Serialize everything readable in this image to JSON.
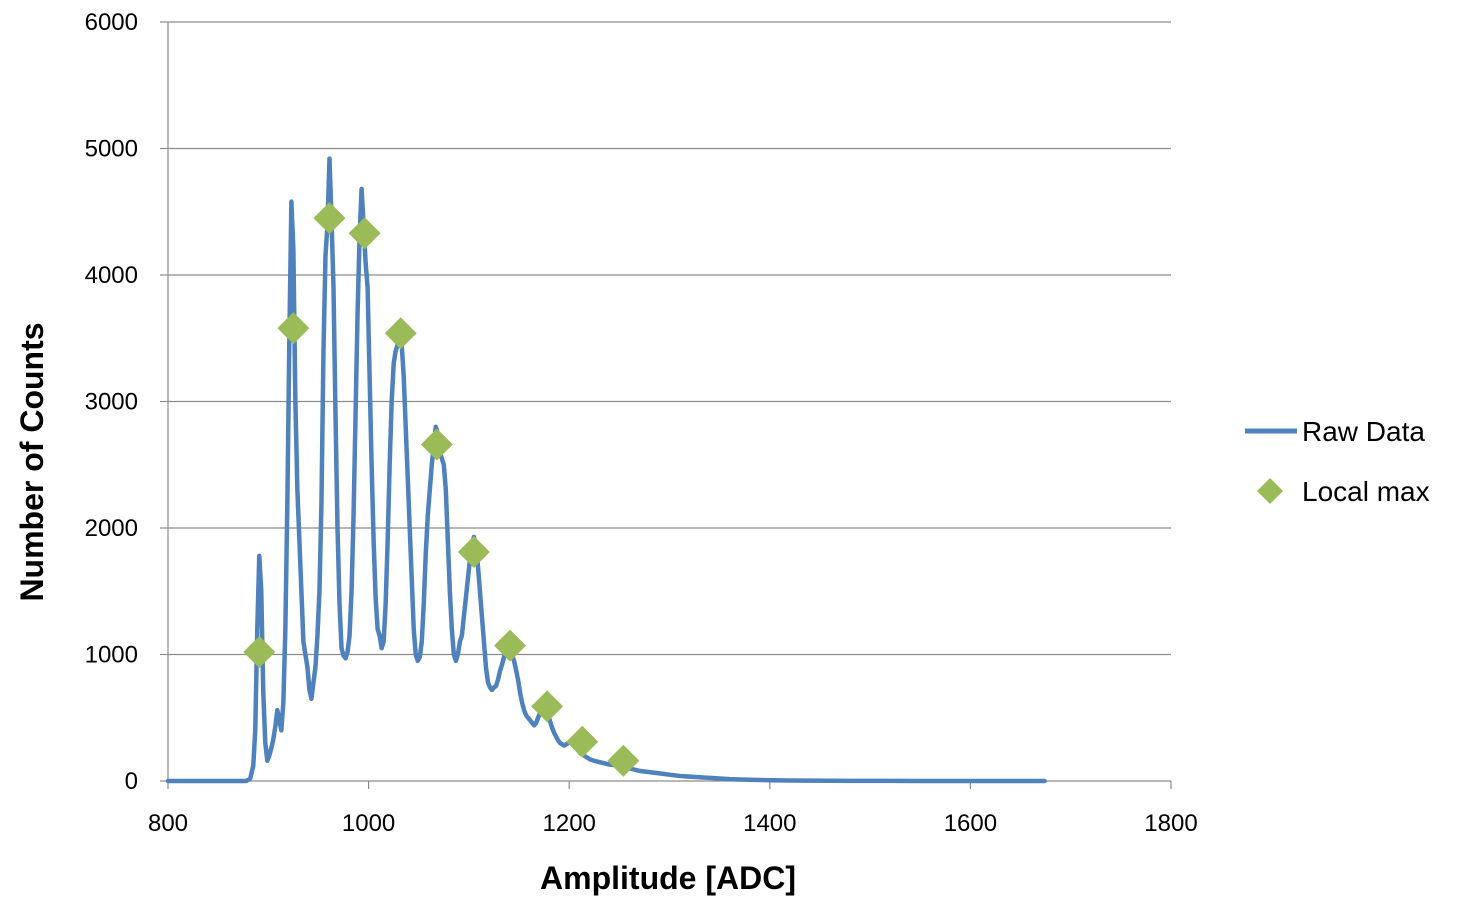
{
  "chart_data": {
    "type": "line",
    "title": "",
    "xlabel": "Amplitude [ADC]",
    "ylabel": "Number of Counts",
    "xlim": [
      800,
      1800
    ],
    "ylim": [
      0,
      6000
    ],
    "x_ticks": [
      800,
      1000,
      1200,
      1400,
      1600,
      1800
    ],
    "y_ticks": [
      0,
      1000,
      2000,
      3000,
      4000,
      5000,
      6000
    ],
    "x_tick_labels": [
      "800",
      "1000",
      "1200",
      "1400",
      "1600",
      "1800"
    ],
    "y_tick_labels": [
      "0",
      "1000",
      "2000",
      "3000",
      "4000",
      "5000",
      "6000"
    ],
    "grid": "horizontal",
    "legend_position": "right",
    "series": [
      {
        "name": "Raw Data",
        "kind": "line",
        "color": "#4f81bd",
        "points": [
          [
            800,
            0
          ],
          [
            870,
            0
          ],
          [
            878,
            0
          ],
          [
            882,
            20
          ],
          [
            885,
            120
          ],
          [
            887,
            400
          ],
          [
            889,
            1200
          ],
          [
            891,
            1780
          ],
          [
            893,
            1500
          ],
          [
            895,
            700
          ],
          [
            897,
            300
          ],
          [
            899,
            160
          ],
          [
            901,
            200
          ],
          [
            903,
            260
          ],
          [
            905,
            330
          ],
          [
            907,
            430
          ],
          [
            909,
            560
          ],
          [
            911,
            480
          ],
          [
            913,
            400
          ],
          [
            915,
            620
          ],
          [
            917,
            1200
          ],
          [
            919,
            2200
          ],
          [
            921,
            3500
          ],
          [
            923,
            4580
          ],
          [
            925,
            4200
          ],
          [
            927,
            3000
          ],
          [
            929,
            2300
          ],
          [
            931,
            1900
          ],
          [
            933,
            1500
          ],
          [
            935,
            1100
          ],
          [
            937,
            1000
          ],
          [
            939,
            900
          ],
          [
            941,
            720
          ],
          [
            943,
            650
          ],
          [
            945,
            780
          ],
          [
            947,
            900
          ],
          [
            949,
            1150
          ],
          [
            951,
            1500
          ],
          [
            953,
            2200
          ],
          [
            955,
            3400
          ],
          [
            957,
            4150
          ],
          [
            959,
            4400
          ],
          [
            961,
            4920
          ],
          [
            963,
            4450
          ],
          [
            965,
            3900
          ],
          [
            967,
            2900
          ],
          [
            969,
            2000
          ],
          [
            971,
            1400
          ],
          [
            973,
            1050
          ],
          [
            975,
            990
          ],
          [
            977,
            970
          ],
          [
            979,
            1020
          ],
          [
            981,
            1150
          ],
          [
            983,
            1500
          ],
          [
            985,
            2100
          ],
          [
            987,
            2900
          ],
          [
            989,
            3700
          ],
          [
            991,
            4300
          ],
          [
            993,
            4680
          ],
          [
            995,
            4400
          ],
          [
            997,
            4100
          ],
          [
            999,
            3900
          ],
          [
            1001,
            3200
          ],
          [
            1003,
            2500
          ],
          [
            1005,
            1900
          ],
          [
            1007,
            1450
          ],
          [
            1009,
            1200
          ],
          [
            1011,
            1150
          ],
          [
            1013,
            1050
          ],
          [
            1015,
            1100
          ],
          [
            1017,
            1400
          ],
          [
            1019,
            1900
          ],
          [
            1021,
            2500
          ],
          [
            1023,
            3000
          ],
          [
            1025,
            3300
          ],
          [
            1027,
            3400
          ],
          [
            1029,
            3450
          ],
          [
            1031,
            3500
          ],
          [
            1033,
            3450
          ],
          [
            1035,
            3200
          ],
          [
            1037,
            2800
          ],
          [
            1039,
            2400
          ],
          [
            1041,
            2000
          ],
          [
            1043,
            1600
          ],
          [
            1045,
            1200
          ],
          [
            1047,
            1000
          ],
          [
            1049,
            950
          ],
          [
            1051,
            980
          ],
          [
            1053,
            1100
          ],
          [
            1055,
            1400
          ],
          [
            1057,
            1800
          ],
          [
            1059,
            2100
          ],
          [
            1061,
            2300
          ],
          [
            1063,
            2500
          ],
          [
            1065,
            2650
          ],
          [
            1067,
            2800
          ],
          [
            1069,
            2750
          ],
          [
            1071,
            2600
          ],
          [
            1073,
            2550
          ],
          [
            1075,
            2500
          ],
          [
            1077,
            2300
          ],
          [
            1079,
            1900
          ],
          [
            1081,
            1500
          ],
          [
            1083,
            1200
          ],
          [
            1085,
            1000
          ],
          [
            1087,
            950
          ],
          [
            1089,
            1000
          ],
          [
            1091,
            1100
          ],
          [
            1093,
            1150
          ],
          [
            1095,
            1300
          ],
          [
            1097,
            1450
          ],
          [
            1099,
            1600
          ],
          [
            1101,
            1750
          ],
          [
            1103,
            1850
          ],
          [
            1105,
            1930
          ],
          [
            1107,
            1850
          ],
          [
            1109,
            1700
          ],
          [
            1111,
            1500
          ],
          [
            1113,
            1300
          ],
          [
            1115,
            1100
          ],
          [
            1117,
            900
          ],
          [
            1119,
            780
          ],
          [
            1121,
            740
          ],
          [
            1123,
            720
          ],
          [
            1125,
            740
          ],
          [
            1127,
            750
          ],
          [
            1129,
            800
          ],
          [
            1131,
            870
          ],
          [
            1133,
            920
          ],
          [
            1135,
            980
          ],
          [
            1137,
            1020
          ],
          [
            1139,
            1060
          ],
          [
            1141,
            1050
          ],
          [
            1143,
            1000
          ],
          [
            1145,
            950
          ],
          [
            1147,
            880
          ],
          [
            1149,
            800
          ],
          [
            1151,
            700
          ],
          [
            1153,
            620
          ],
          [
            1155,
            560
          ],
          [
            1157,
            520
          ],
          [
            1159,
            500
          ],
          [
            1161,
            480
          ],
          [
            1163,
            460
          ],
          [
            1165,
            440
          ],
          [
            1167,
            460
          ],
          [
            1169,
            500
          ],
          [
            1171,
            540
          ],
          [
            1173,
            560
          ],
          [
            1175,
            580
          ],
          [
            1177,
            560
          ],
          [
            1179,
            520
          ],
          [
            1181,
            470
          ],
          [
            1183,
            420
          ],
          [
            1185,
            380
          ],
          [
            1187,
            350
          ],
          [
            1189,
            320
          ],
          [
            1191,
            300
          ],
          [
            1193,
            290
          ],
          [
            1195,
            280
          ],
          [
            1197,
            290
          ],
          [
            1199,
            300
          ],
          [
            1201,
            310
          ],
          [
            1203,
            300
          ],
          [
            1205,
            280
          ],
          [
            1207,
            260
          ],
          [
            1209,
            240
          ],
          [
            1211,
            220
          ],
          [
            1213,
            210
          ],
          [
            1215,
            200
          ],
          [
            1217,
            190
          ],
          [
            1219,
            180
          ],
          [
            1221,
            170
          ],
          [
            1223,
            165
          ],
          [
            1225,
            160
          ],
          [
            1230,
            150
          ],
          [
            1235,
            140
          ],
          [
            1240,
            130
          ],
          [
            1245,
            125
          ],
          [
            1250,
            120
          ],
          [
            1255,
            115
          ],
          [
            1260,
            100
          ],
          [
            1265,
            90
          ],
          [
            1270,
            80
          ],
          [
            1280,
            70
          ],
          [
            1290,
            60
          ],
          [
            1300,
            50
          ],
          [
            1310,
            40
          ],
          [
            1320,
            35
          ],
          [
            1330,
            30
          ],
          [
            1340,
            25
          ],
          [
            1350,
            20
          ],
          [
            1360,
            15
          ],
          [
            1370,
            12
          ],
          [
            1380,
            10
          ],
          [
            1390,
            8
          ],
          [
            1400,
            6
          ],
          [
            1420,
            4
          ],
          [
            1440,
            3
          ],
          [
            1460,
            2
          ],
          [
            1480,
            1
          ],
          [
            1500,
            1
          ],
          [
            1550,
            0
          ],
          [
            1600,
            0
          ],
          [
            1674,
            0
          ]
        ]
      },
      {
        "name": "Local max",
        "kind": "scatter",
        "marker": "diamond",
        "color": "#9bbb59",
        "points": [
          [
            891,
            1020
          ],
          [
            925,
            3580
          ],
          [
            961,
            4450
          ],
          [
            996,
            4330
          ],
          [
            1032,
            3540
          ],
          [
            1068,
            2660
          ],
          [
            1105,
            1810
          ],
          [
            1141,
            1070
          ],
          [
            1178,
            590
          ],
          [
            1213,
            310
          ],
          [
            1254,
            160
          ]
        ]
      }
    ]
  }
}
